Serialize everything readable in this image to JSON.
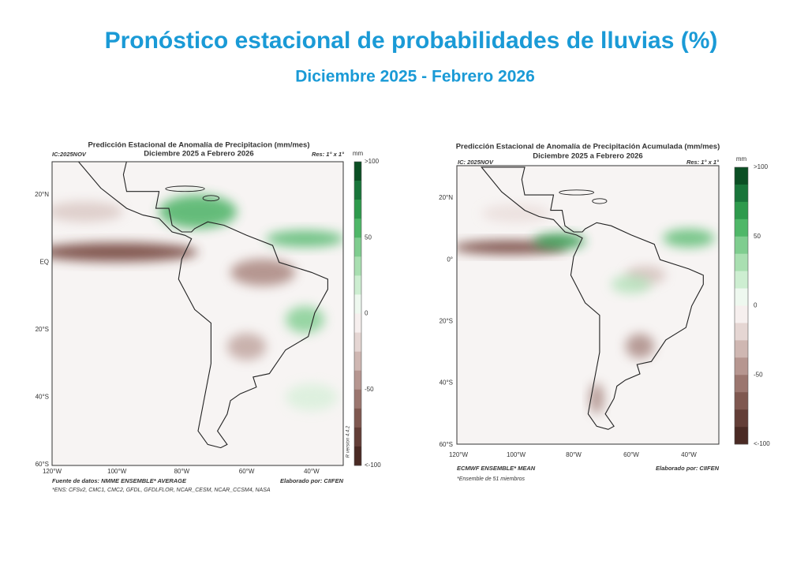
{
  "header": {
    "title": "Pronóstico estacional de probabilidades de lluvias (%)",
    "subtitle": "Diciembre 2025 - Febrero 2026"
  },
  "maps": [
    {
      "title": "Predicción Estacional de Anomalía de Precipitacion (mm/mes)",
      "period": "Diciembre 2025 a Febrero 2026",
      "ic": "IC:2025NOV",
      "resolution": "Res: 1° x 1°",
      "unit": "mm",
      "legend_labels": [
        ">100",
        "50",
        "0",
        "-50",
        "<-100"
      ],
      "lat_labels": [
        "20°N",
        "EQ",
        "20°S",
        "40°S",
        "60°S"
      ],
      "lon_labels": [
        "120°W",
        "100°W",
        "80°W",
        "60°W",
        "40°W"
      ],
      "source": "Fuente de datos: NMME ENSEMBLE* AVERAGE",
      "credit": "Elaborado por: CIIFEN",
      "footnote": "*ENS: CFSv2, CMC1, CMC2, GFDL, GFDLFLOR, NCAR_CESM, NCAR_CCSM4, NASA",
      "version": "R version 4.4.2"
    },
    {
      "title": "Predicción Estacional de Anomalía de Precipitación Acumulada (mm/mes)",
      "period": "Diciembre 2025 a Febrero 2026",
      "ic": "IC: 2025NOV",
      "resolution": "Res: 1° x 1°",
      "unit": "mm",
      "legend_labels": [
        ">100",
        "50",
        "0",
        "-50",
        "<-100"
      ],
      "lat_labels": [
        "20°N",
        "0°",
        "20°S",
        "40°S",
        "60°S"
      ],
      "lon_labels": [
        "120°W",
        "100°W",
        "80°W",
        "60°W",
        "40°W"
      ],
      "source": "ECMWF ENSEMBLE* MEAN",
      "credit": "Elaborado por: CIIFEN",
      "footnote": "*Ensemble de 51 miembros"
    }
  ]
}
